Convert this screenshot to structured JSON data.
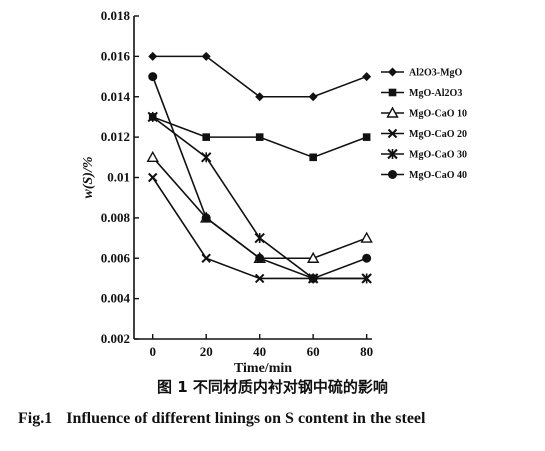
{
  "chart_data": {
    "type": "line",
    "title": "",
    "xlabel": "Time/min",
    "ylabel": "w(S)/%",
    "x": [
      0,
      20,
      40,
      60,
      80
    ],
    "xlim": [
      -7,
      82
    ],
    "ylim": [
      0.002,
      0.018
    ],
    "xticks": [
      "0",
      "20",
      "40",
      "60",
      "80"
    ],
    "yticks": [
      "0.002",
      "0.004",
      "0.006",
      "0.008",
      "0.01",
      "0.012",
      "0.014",
      "0.016",
      "0.018"
    ],
    "yticks_values": [
      0.002,
      0.004,
      0.006,
      0.008,
      0.01,
      0.012,
      0.014,
      0.016,
      0.018
    ],
    "grid": false,
    "legend_position": "right",
    "series": [
      {
        "name": "Al2O3-MgO",
        "marker": "diamond",
        "values": [
          0.016,
          0.016,
          0.014,
          0.014,
          0.015
        ]
      },
      {
        "name": "MgO-Al2O3",
        "marker": "square",
        "values": [
          0.013,
          0.012,
          0.012,
          0.011,
          0.012
        ]
      },
      {
        "name": "MgO-CaO 10",
        "marker": "triangle",
        "values": [
          0.011,
          0.008,
          0.006,
          0.006,
          0.007
        ]
      },
      {
        "name": "MgO-CaO 20",
        "marker": "x",
        "values": [
          0.01,
          0.006,
          0.005,
          0.005,
          0.005
        ]
      },
      {
        "name": "MgO-CaO 30",
        "marker": "star",
        "values": [
          0.013,
          0.011,
          0.007,
          0.005,
          0.005
        ]
      },
      {
        "name": "MgO-CaO 40",
        "marker": "circle",
        "values": [
          0.015,
          0.008,
          0.006,
          0.005,
          0.006
        ]
      }
    ]
  },
  "caption": {
    "cn": "图 1   不同材质内衬对钢中硫的影响",
    "en_number": "Fig.1",
    "en_text": "Influence of different linings on S content in the steel"
  }
}
